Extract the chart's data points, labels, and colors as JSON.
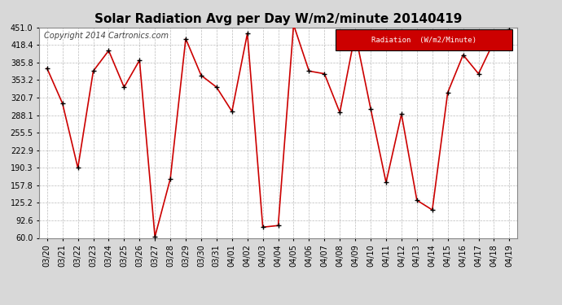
{
  "title": "Solar Radiation Avg per Day W/m2/minute 20140419",
  "copyright": "Copyright 2014 Cartronics.com",
  "legend_label": "Radiation  (W/m2/Minute)",
  "legend_bg": "#cc0000",
  "legend_fg": "#ffffff",
  "dates": [
    "03/20",
    "03/21",
    "03/22",
    "03/23",
    "03/24",
    "03/25",
    "03/26",
    "03/27",
    "03/28",
    "03/29",
    "03/30",
    "03/31",
    "04/01",
    "04/02",
    "04/03",
    "04/04",
    "04/05",
    "04/06",
    "04/07",
    "04/08",
    "04/09",
    "04/10",
    "04/11",
    "04/12",
    "04/13",
    "04/14",
    "04/15",
    "04/16",
    "04/17",
    "04/18",
    "04/19"
  ],
  "values": [
    375,
    310,
    190,
    370,
    408,
    340,
    390,
    62,
    170,
    430,
    362,
    340,
    295,
    440,
    80,
    83,
    456,
    370,
    365,
    293,
    440,
    300,
    163,
    290,
    130,
    112,
    330,
    400,
    365,
    425,
    447
  ],
  "ylim": [
    60,
    451
  ],
  "yticks": [
    60.0,
    92.6,
    125.2,
    157.8,
    190.3,
    222.9,
    255.5,
    288.1,
    320.7,
    353.2,
    385.8,
    418.4,
    451.0
  ],
  "line_color": "#cc0000",
  "marker_color": "#000000",
  "bg_color": "#d8d8d8",
  "plot_bg": "#ffffff",
  "grid_color": "#aaaaaa",
  "title_fontsize": 11,
  "tick_fontsize": 7,
  "copyright_fontsize": 7,
  "fig_width": 6.9,
  "fig_height": 3.75,
  "dpi": 100
}
